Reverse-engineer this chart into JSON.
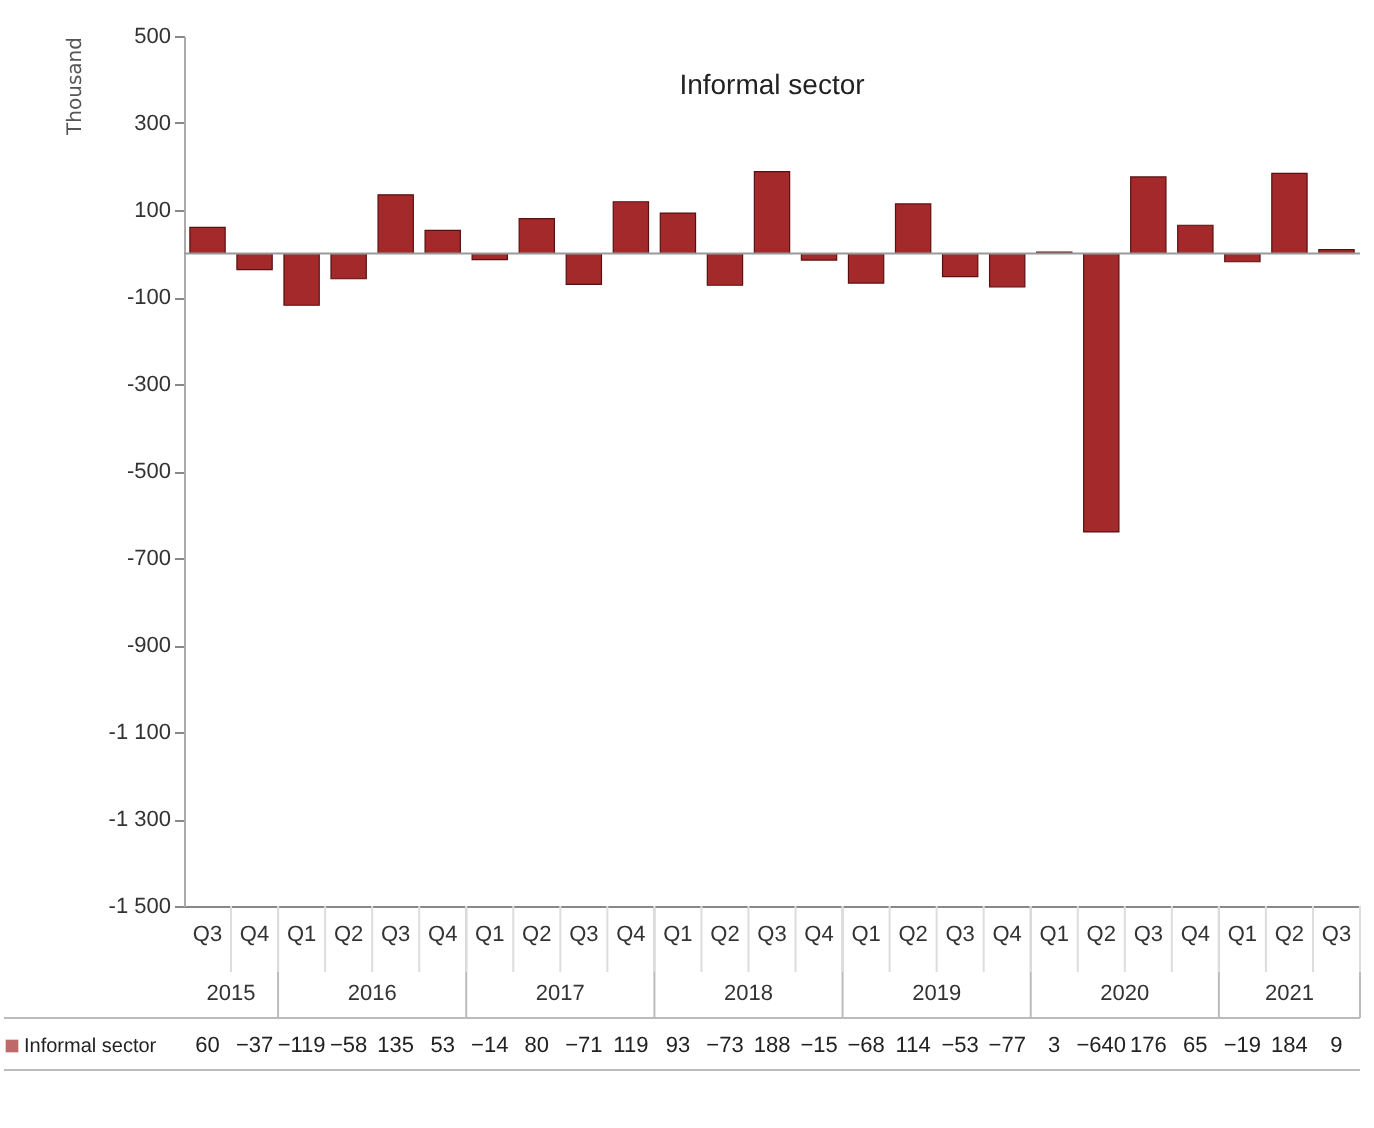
{
  "chart_data": {
    "type": "bar",
    "title": "Informal sector",
    "ylabel": "Thousand",
    "categories": [
      "Q3",
      "Q4",
      "Q1",
      "Q2",
      "Q3",
      "Q4",
      "Q1",
      "Q2",
      "Q3",
      "Q4",
      "Q1",
      "Q2",
      "Q3",
      "Q4",
      "Q1",
      "Q2",
      "Q3",
      "Q4",
      "Q1",
      "Q2",
      "Q3",
      "Q4",
      "Q1",
      "Q2",
      "Q3"
    ],
    "series": [
      {
        "name": "Informal sector",
        "color": "#a3292b",
        "values": [
          60,
          -37,
          -119,
          -58,
          135,
          53,
          -14,
          80,
          -71,
          119,
          93,
          -73,
          188,
          -15,
          -68,
          114,
          -53,
          -77,
          3,
          -640,
          176,
          65,
          -19,
          184,
          9
        ]
      }
    ],
    "annotations": [
      "2015",
      "2016",
      "2017",
      "2018",
      "2019",
      "2020",
      "2021"
    ],
    "ylim": [
      -1500,
      500
    ],
    "yticks": [
      {
        "value": 500,
        "label": "500"
      },
      {
        "value": 300,
        "label": "300"
      },
      {
        "value": 100,
        "label": "100"
      },
      {
        "value": -100,
        "label": "-100"
      },
      {
        "value": -300,
        "label": "-300"
      },
      {
        "value": -500,
        "label": "-500"
      },
      {
        "value": -700,
        "label": "-700"
      },
      {
        "value": -900,
        "label": "-900"
      },
      {
        "value": -1100,
        "label": "-1 100"
      },
      {
        "value": -1300,
        "label": "-1 300"
      },
      {
        "value": -1500,
        "label": "-1 500"
      }
    ],
    "ref_lines": [
      {
        "axis": "y",
        "value": 0
      }
    ],
    "data_labels": true,
    "legend": "bottom",
    "grid": false
  }
}
